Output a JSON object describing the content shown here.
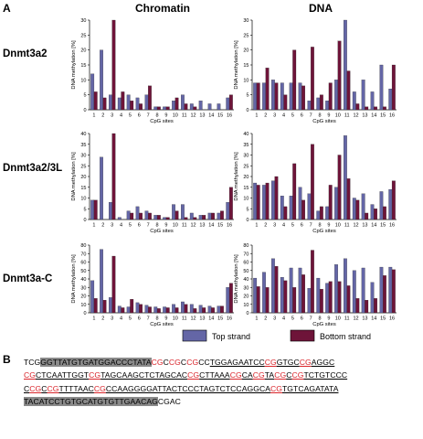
{
  "panel_labels": {
    "a": "A",
    "b": "B"
  },
  "column_titles": [
    "Chromatin",
    "DNA"
  ],
  "row_labels": [
    "Dnmt3a2",
    "Dnmt3a2/3L",
    "Dnmt3a-C"
  ],
  "legend": [
    {
      "label": "Top strand",
      "color": "#6466a6"
    },
    {
      "label": "Bottom strand",
      "color": "#6e1439"
    }
  ],
  "colors": {
    "top": "#6466a6",
    "bottom": "#6e1439",
    "cpg_red": "#d9242a",
    "primer_highlight": "#8a8a8a"
  },
  "chart_data": [
    {
      "type": "bar",
      "row": "Dnmt3a2",
      "column": "Chromatin",
      "categories": [
        "1",
        "2",
        "3",
        "4",
        "5",
        "6",
        "7",
        "8",
        "9",
        "10",
        "11",
        "12",
        "13",
        "14",
        "15",
        "16"
      ],
      "xlabel": "CpG sites",
      "ylabel": "DNA methylation [%]",
      "ylim": [
        0,
        30
      ],
      "yticks": [
        0,
        5,
        10,
        15,
        20,
        25,
        30
      ],
      "series": [
        {
          "name": "Top strand",
          "values": [
            12,
            20,
            5,
            4,
            5,
            4,
            5,
            1,
            1,
            3,
            5,
            2,
            3,
            2,
            2,
            4
          ]
        },
        {
          "name": "Bottom strand",
          "values": [
            6,
            4,
            30,
            6,
            3,
            2,
            8,
            1,
            1,
            4,
            2,
            1,
            0,
            0,
            0,
            5
          ]
        }
      ]
    },
    {
      "type": "bar",
      "row": "Dnmt3a2",
      "column": "DNA",
      "categories": [
        "1",
        "2",
        "3",
        "4",
        "5",
        "6",
        "7",
        "8",
        "9",
        "10",
        "11",
        "12",
        "13",
        "14",
        "15",
        "16"
      ],
      "xlabel": "CpG sites",
      "ylabel": "DNA methylation [%]",
      "ylim": [
        0,
        30
      ],
      "yticks": [
        0,
        5,
        10,
        15,
        20,
        25,
        30
      ],
      "series": [
        {
          "name": "Top strand",
          "values": [
            9,
            9,
            10,
            9,
            9,
            9,
            3,
            4,
            3,
            10,
            30,
            6,
            10,
            6,
            15,
            7
          ]
        },
        {
          "name": "Bottom strand",
          "values": [
            9,
            14,
            9,
            5,
            20,
            8,
            21,
            5,
            9,
            23,
            13,
            2,
            1,
            1,
            1,
            15
          ]
        }
      ]
    },
    {
      "type": "bar",
      "row": "Dnmt3a2/3L",
      "column": "Chromatin",
      "categories": [
        "1",
        "2",
        "3",
        "4",
        "5",
        "6",
        "7",
        "8",
        "9",
        "10",
        "11",
        "12",
        "13",
        "14",
        "15",
        "16"
      ],
      "xlabel": "CpG sites",
      "ylabel": "DNA methylation [%]",
      "ylim": [
        0,
        40
      ],
      "yticks": [
        0,
        5,
        10,
        15,
        20,
        25,
        30,
        35,
        40
      ],
      "series": [
        {
          "name": "Top strand",
          "values": [
            9,
            29,
            8,
            1,
            4,
            6,
            4,
            2,
            1,
            7,
            7,
            3,
            2,
            3,
            3,
            8
          ]
        },
        {
          "name": "Bottom strand",
          "values": [
            9,
            0,
            40,
            0,
            3,
            3,
            3,
            2,
            1,
            4,
            1,
            1,
            2,
            3,
            4,
            15
          ]
        }
      ]
    },
    {
      "type": "bar",
      "row": "Dnmt3a2/3L",
      "column": "DNA",
      "categories": [
        "1",
        "2",
        "3",
        "4",
        "5",
        "6",
        "7",
        "8",
        "9",
        "10",
        "11",
        "12",
        "13",
        "14",
        "15",
        "16"
      ],
      "xlabel": "CpG sites",
      "ylabel": "DNA methylation [%]",
      "ylim": [
        0,
        40
      ],
      "yticks": [
        0,
        5,
        10,
        15,
        20,
        25,
        30,
        35,
        40
      ],
      "series": [
        {
          "name": "Top strand",
          "values": [
            17,
            16,
            18,
            11,
            11,
            15,
            12,
            4,
            6,
            15,
            39,
            10,
            12,
            7,
            13,
            14
          ]
        },
        {
          "name": "Bottom strand",
          "values": [
            16,
            17,
            20,
            6,
            26,
            9,
            35,
            6,
            16,
            30,
            19,
            9,
            3,
            5,
            6,
            18
          ]
        }
      ]
    },
    {
      "type": "bar",
      "row": "Dnmt3a-C",
      "column": "Chromatin",
      "categories": [
        "1",
        "2",
        "3",
        "4",
        "5",
        "6",
        "7",
        "8",
        "9",
        "10",
        "11",
        "12",
        "13",
        "14",
        "15",
        "16"
      ],
      "xlabel": "CpG sites",
      "ylabel": "DNA methylation [%]",
      "ylim": [
        0,
        80
      ],
      "yticks": [
        0,
        10,
        20,
        30,
        40,
        50,
        60,
        70,
        80
      ],
      "series": [
        {
          "name": "Top strand",
          "values": [
            38,
            75,
            18,
            8,
            7,
            12,
            9,
            7,
            7,
            10,
            13,
            10,
            9,
            8,
            8,
            30
          ]
        },
        {
          "name": "Bottom strand",
          "values": [
            17,
            15,
            67,
            6,
            16,
            10,
            7,
            5,
            6,
            6,
            10,
            5,
            6,
            6,
            8,
            35
          ]
        }
      ]
    },
    {
      "type": "bar",
      "row": "Dnmt3a-C",
      "column": "DNA",
      "categories": [
        "1",
        "2",
        "3",
        "4",
        "5",
        "6",
        "7",
        "8",
        "9",
        "10",
        "11",
        "12",
        "13",
        "14",
        "15",
        "16"
      ],
      "xlabel": "CpG sites",
      "ylabel": "DNA methylation [%]",
      "ylim": [
        0,
        80
      ],
      "yticks": [
        0,
        10,
        20,
        30,
        40,
        50,
        60,
        70,
        80
      ],
      "series": [
        {
          "name": "Top strand",
          "values": [
            41,
            48,
            64,
            42,
            53,
            53,
            29,
            41,
            35,
            57,
            64,
            50,
            53,
            36,
            54,
            54
          ]
        },
        {
          "name": "Bottom strand",
          "values": [
            31,
            30,
            55,
            38,
            30,
            45,
            74,
            28,
            37,
            37,
            32,
            17,
            15,
            17,
            44,
            51
          ]
        }
      ]
    }
  ],
  "sequence": {
    "lines": [
      [
        {
          "t": "TCG"
        },
        {
          "t": "GGTTATGTGATGGACCCTATA",
          "hl": true
        },
        {
          "t": "CG",
          "red": true
        },
        {
          "t": "C"
        },
        {
          "t": "CG",
          "red": true
        },
        {
          "t": "C"
        },
        {
          "t": "CG",
          "red": true
        },
        {
          "t": "CC"
        },
        {
          "t": "TGGAGAATCC",
          "ul": true
        },
        {
          "t": "CG",
          "red": true,
          "ul": true
        },
        {
          "t": "GTGC",
          "ul": true
        },
        {
          "t": "CG",
          "red": true,
          "ul": true
        },
        {
          "t": "AGGC",
          "ul": true
        }
      ],
      [
        {
          "t": "CG",
          "red": true,
          "ul": true
        },
        {
          "t": "CTCAATTGGT",
          "ul": true
        },
        {
          "t": "CG",
          "red": true,
          "ul": true
        },
        {
          "t": "TAGCAAGCTCTAGCAC",
          "ul": true
        },
        {
          "t": "CG",
          "red": true,
          "ul": true
        },
        {
          "t": "CTTAAA",
          "ul": true
        },
        {
          "t": "CG",
          "red": true,
          "ul": true
        },
        {
          "t": "CA",
          "ul": true
        },
        {
          "t": "CG",
          "red": true,
          "ul": true
        },
        {
          "t": "TA",
          "ul": true
        },
        {
          "t": "CG",
          "red": true,
          "ul": true
        },
        {
          "t": "C",
          "ul": true
        },
        {
          "t": "CG",
          "red": true,
          "ul": true
        },
        {
          "t": "TCTGTCCC",
          "ul": true
        }
      ],
      [
        {
          "t": "C",
          "ul": true
        },
        {
          "t": "CG",
          "red": true,
          "ul": true
        },
        {
          "t": "C",
          "ul": true
        },
        {
          "t": "CG",
          "red": true,
          "ul": true
        },
        {
          "t": "TTTTAAC",
          "ul": true
        },
        {
          "t": "CG",
          "red": true,
          "ul": true
        },
        {
          "t": "CCAAGGGGATTACTCCCTAGTCTCCAGGCA",
          "ul": true
        },
        {
          "t": "CG",
          "red": true,
          "ul": true
        },
        {
          "t": "TGTCAGATATA",
          "ul": true
        }
      ],
      [
        {
          "t": "TACATCCTGTGCATGTGTTGAACAG",
          "hl": true
        },
        {
          "t": "CGAC"
        }
      ]
    ]
  }
}
